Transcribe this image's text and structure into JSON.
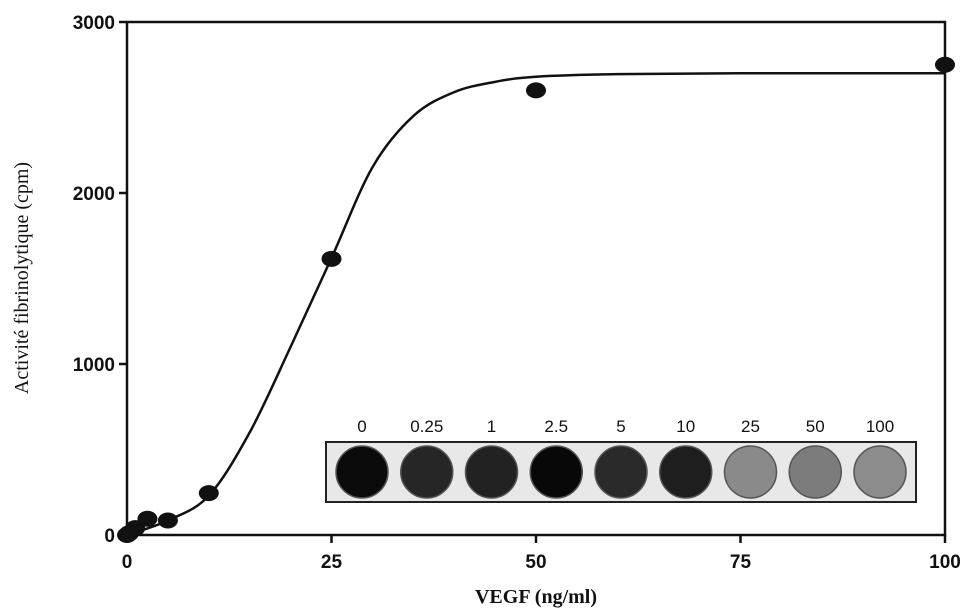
{
  "chart_data": {
    "type": "scatter",
    "x_label": "VEGF (ng/ml)",
    "y_label": "Activité fibrinolytique (cpm)",
    "xlim": [
      0,
      100
    ],
    "xticks": [
      0,
      25,
      50,
      75,
      100
    ],
    "ylim": [
      0,
      3000
    ],
    "yticks": [
      0,
      1000,
      2000,
      3000
    ],
    "color": "#111111",
    "points": {
      "x": [
        0,
        0.25,
        1,
        2.5,
        5,
        10,
        25,
        50,
        100
      ],
      "values": [
        0,
        10,
        40,
        95,
        85,
        245,
        1615,
        2600,
        2750
      ]
    },
    "fit": {
      "x": [
        0,
        5,
        10,
        15,
        20,
        25,
        30,
        35,
        40,
        45,
        50,
        60,
        75,
        100
      ],
      "values": [
        0,
        85,
        230,
        600,
        1100,
        1620,
        2150,
        2450,
        2590,
        2650,
        2680,
        2695,
        2700,
        2700
      ]
    },
    "inset": {
      "labels": [
        "0",
        "0.25",
        "1",
        "2.5",
        "5",
        "10",
        "25",
        "50",
        "100"
      ],
      "well_colors": [
        "#0a0a0a",
        "#262626",
        "#222222",
        "#080808",
        "#2a2a2a",
        "#1e1e1e",
        "#8a8a8a",
        "#7c7c7c",
        "#8c8c8c"
      ]
    }
  }
}
